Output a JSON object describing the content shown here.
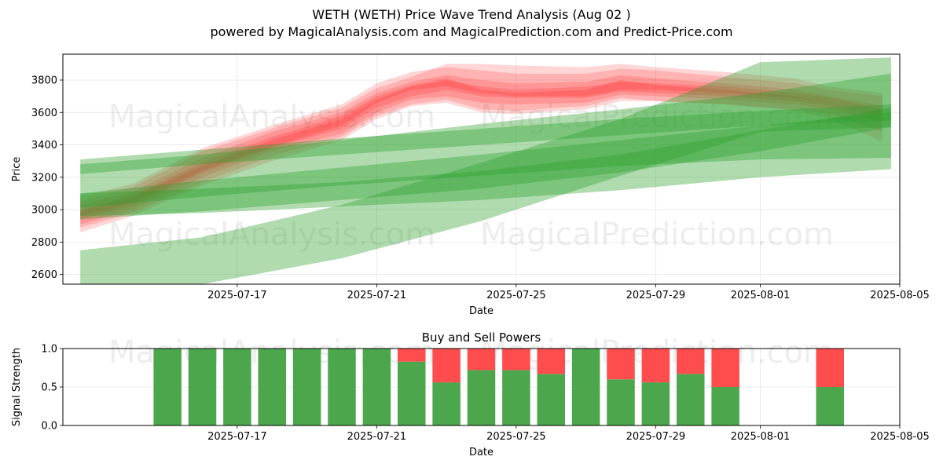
{
  "figure": {
    "title": "WETH (WETH) Price Wave Trend Analysis (Aug 02 )",
    "subtitle": "powered by MagicalAnalysis.com and MagicalPrediction.com and Predict-Price.com",
    "watermark_1": "MagicalAnalysis.com",
    "watermark_2": "MagicalPrediction.com"
  },
  "chart_data": [
    {
      "type": "area",
      "title": "",
      "xlabel": "Date",
      "ylabel": "Price",
      "xlim": [
        "2025-07-12",
        "2025-08-05"
      ],
      "ylim": [
        2540,
        3960
      ],
      "yticks": [
        2600,
        2800,
        3000,
        3200,
        3400,
        3600,
        3800
      ],
      "xticks": [
        "2025-07-17",
        "2025-07-21",
        "2025-07-25",
        "2025-07-29",
        "2025-08-01",
        "2025-08-05"
      ],
      "grid": true,
      "colors": {
        "sell_band": "#ff0000",
        "buy_band": "#2ca02c"
      },
      "red_bands": [
        {
          "x": [
            "2025-07-12T12:00",
            "2025-07-14",
            "2025-07-16",
            "2025-07-18",
            "2025-07-20",
            "2025-07-21",
            "2025-07-22",
            "2025-07-23",
            "2025-07-24",
            "2025-07-25",
            "2025-07-27",
            "2025-07-28",
            "2025-07-29",
            "2025-07-31",
            "2025-08-02",
            "2025-08-03",
            "2025-08-04T12:00"
          ],
          "upper": [
            3030,
            3110,
            3320,
            3480,
            3600,
            3720,
            3790,
            3830,
            3800,
            3780,
            3790,
            3830,
            3810,
            3780,
            3740,
            3700,
            3640
          ],
          "lower": [
            2910,
            3000,
            3200,
            3360,
            3470,
            3600,
            3680,
            3700,
            3660,
            3650,
            3660,
            3710,
            3700,
            3680,
            3650,
            3620,
            3540
          ]
        },
        {
          "x": [
            "2025-07-12T12:00",
            "2025-07-14",
            "2025-07-16",
            "2025-07-18",
            "2025-07-20",
            "2025-07-21",
            "2025-07-22",
            "2025-07-23",
            "2025-07-24",
            "2025-07-25",
            "2025-07-27",
            "2025-07-28",
            "2025-07-29",
            "2025-07-31",
            "2025-08-02",
            "2025-08-03",
            "2025-08-04T12:00"
          ],
          "upper": [
            3080,
            3160,
            3380,
            3520,
            3650,
            3780,
            3850,
            3880,
            3860,
            3840,
            3840,
            3870,
            3860,
            3820,
            3780,
            3740,
            3700
          ],
          "lower": [
            2960,
            3040,
            3240,
            3390,
            3520,
            3660,
            3740,
            3760,
            3720,
            3700,
            3700,
            3740,
            3740,
            3720,
            3690,
            3660,
            3600
          ]
        },
        {
          "x": [
            "2025-07-12T12:00",
            "2025-07-14",
            "2025-07-16",
            "2025-07-18",
            "2025-07-20",
            "2025-07-21",
            "2025-07-22",
            "2025-07-23",
            "2025-07-24",
            "2025-07-25",
            "2025-07-27",
            "2025-07-28",
            "2025-07-29",
            "2025-07-31",
            "2025-08-02",
            "2025-08-03",
            "2025-08-04T12:00"
          ],
          "upper": [
            2990,
            3080,
            3270,
            3430,
            3560,
            3680,
            3760,
            3800,
            3760,
            3740,
            3760,
            3790,
            3780,
            3760,
            3720,
            3690,
            3620
          ],
          "lower": [
            2860,
            2960,
            3150,
            3300,
            3430,
            3560,
            3640,
            3660,
            3600,
            3590,
            3620,
            3670,
            3670,
            3650,
            3620,
            3590,
            3480
          ]
        },
        {
          "x": [
            "2025-07-12T12:00",
            "2025-07-14",
            "2025-07-16",
            "2025-07-18",
            "2025-07-20",
            "2025-07-21",
            "2025-07-22",
            "2025-07-23",
            "2025-07-24",
            "2025-07-25",
            "2025-07-27",
            "2025-07-28",
            "2025-07-29",
            "2025-07-31",
            "2025-08-02",
            "2025-08-03",
            "2025-08-04T12:00"
          ],
          "upper": [
            3050,
            3140,
            3360,
            3500,
            3630,
            3750,
            3820,
            3900,
            3900,
            3890,
            3880,
            3900,
            3880,
            3850,
            3810,
            3760,
            3720
          ],
          "lower": [
            2940,
            3020,
            3230,
            3380,
            3500,
            3630,
            3700,
            3740,
            3700,
            3690,
            3690,
            3730,
            3720,
            3700,
            3670,
            3640,
            3580
          ]
        },
        {
          "x": [
            "2025-07-12T12:00",
            "2025-07-14",
            "2025-07-16",
            "2025-07-18",
            "2025-07-20",
            "2025-07-21",
            "2025-07-22",
            "2025-07-23",
            "2025-07-24",
            "2025-07-25",
            "2025-07-27",
            "2025-07-28",
            "2025-07-29",
            "2025-07-31",
            "2025-08-02",
            "2025-08-03",
            "2025-08-04T12:00"
          ],
          "upper": [
            3000,
            3090,
            3290,
            3450,
            3580,
            3700,
            3770,
            3810,
            3740,
            3720,
            3740,
            3800,
            3770,
            3740,
            3700,
            3660,
            3600
          ],
          "lower": [
            2890,
            2980,
            3170,
            3330,
            3450,
            3580,
            3650,
            3680,
            3620,
            3610,
            3640,
            3690,
            3670,
            3650,
            3610,
            3560,
            3420
          ]
        }
      ],
      "green_bands": [
        {
          "x": [
            "2025-07-12T12:00",
            "2025-07-16",
            "2025-07-20",
            "2025-07-24",
            "2025-07-28",
            "2025-08-01",
            "2025-08-04T18:00"
          ],
          "upper": [
            3310,
            3370,
            3440,
            3500,
            3560,
            3610,
            3650
          ],
          "lower": [
            3220,
            3280,
            3340,
            3400,
            3460,
            3520,
            3550
          ]
        },
        {
          "x": [
            "2025-07-12T12:00",
            "2025-07-16",
            "2025-07-20",
            "2025-07-24",
            "2025-07-28",
            "2025-08-01",
            "2025-08-04T18:00"
          ],
          "upper": [
            3280,
            3340,
            3430,
            3530,
            3620,
            3720,
            3840
          ],
          "lower": [
            2940,
            2990,
            3060,
            3130,
            3230,
            3360,
            3510
          ]
        },
        {
          "x": [
            "2025-07-12T12:00",
            "2025-07-16",
            "2025-07-20",
            "2025-07-24",
            "2025-07-28",
            "2025-08-01",
            "2025-08-04T18:00"
          ],
          "upper": [
            3100,
            3130,
            3170,
            3240,
            3340,
            3490,
            3630
          ],
          "lower": [
            2960,
            2980,
            3020,
            3060,
            3120,
            3200,
            3250
          ]
        },
        {
          "x": [
            "2025-07-12T12:00",
            "2025-07-16",
            "2025-07-20",
            "2025-07-24",
            "2025-07-28",
            "2025-08-01",
            "2025-08-04T18:00"
          ],
          "upper": [
            2750,
            2830,
            3030,
            3290,
            3560,
            3910,
            3940
          ],
          "lower": [
            2540,
            2540,
            2700,
            2930,
            3210,
            3480,
            3510
          ]
        },
        {
          "x": [
            "2025-07-12T12:00",
            "2025-07-16",
            "2025-07-20",
            "2025-07-24",
            "2025-07-28",
            "2025-08-01",
            "2025-08-04T18:00"
          ],
          "upper": [
            3100,
            3180,
            3260,
            3340,
            3430,
            3520,
            3600
          ],
          "lower": [
            3010,
            3080,
            3150,
            3210,
            3270,
            3310,
            3320
          ]
        }
      ]
    },
    {
      "type": "bar",
      "title": "Buy and Sell Powers",
      "xlabel": "Date",
      "ylabel": "Signal Strength",
      "xlim": [
        "2025-07-12",
        "2025-08-05"
      ],
      "ylim": [
        0,
        1
      ],
      "yticks": [
        "0.0",
        "0.5",
        "1.0"
      ],
      "xticks": [
        "2025-07-17",
        "2025-07-21",
        "2025-07-25",
        "2025-07-29",
        "2025-08-01",
        "2025-08-05"
      ],
      "grid": true,
      "colors": {
        "buy": "#4ca64c",
        "sell": "#ff4c4c"
      },
      "categories": [
        "2025-07-15",
        "2025-07-16",
        "2025-07-17",
        "2025-07-18",
        "2025-07-19",
        "2025-07-20",
        "2025-07-21",
        "2025-07-22",
        "2025-07-23",
        "2025-07-24",
        "2025-07-25",
        "2025-07-26",
        "2025-07-27",
        "2025-07-28",
        "2025-07-29",
        "2025-07-30",
        "2025-07-31",
        "2025-08-03"
      ],
      "series": [
        {
          "name": "",
          "values": [
            1.0,
            1.0,
            1.0,
            1.0,
            1.0,
            1.0,
            1.0,
            0.83,
            0.56,
            0.72,
            0.72,
            0.67,
            1.0,
            0.6,
            0.56,
            0.67,
            0.5,
            0.5
          ]
        },
        {
          "name": "",
          "values": [
            0.0,
            0.0,
            0.0,
            0.0,
            0.0,
            0.0,
            0.0,
            0.17,
            0.44,
            0.28,
            0.28,
            0.33,
            0.0,
            0.4,
            0.44,
            0.33,
            0.5,
            0.5
          ]
        }
      ]
    }
  ]
}
